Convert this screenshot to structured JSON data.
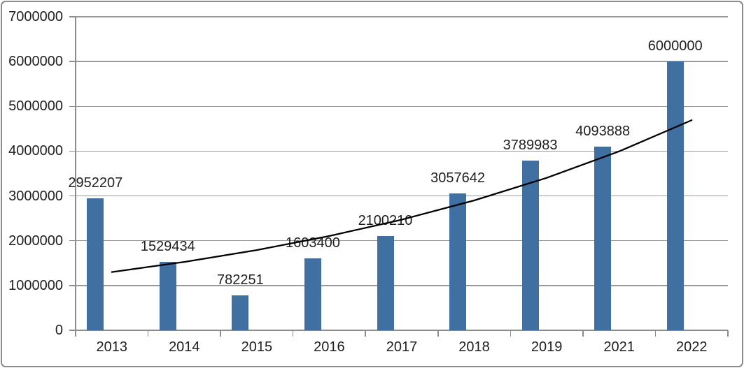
{
  "chart_data": {
    "type": "bar",
    "title": "",
    "xlabel": "",
    "ylabel": "",
    "categories": [
      "2013",
      "2014",
      "2015",
      "2016",
      "2017",
      "2018",
      "2019",
      "2021",
      "2022"
    ],
    "values": [
      2952207,
      1529434,
      782251,
      1603400,
      2100210,
      3057642,
      3789983,
      4093888,
      6000000
    ],
    "data_labels": [
      "2952207",
      "1529434",
      "782251",
      "1603400",
      "2100210",
      "3057642",
      "3789983",
      "4093888",
      "6000000"
    ],
    "ylim": [
      0,
      7000000
    ],
    "ytick_step": 1000000,
    "ytick_labels": [
      "0",
      "1000000",
      "2000000",
      "3000000",
      "4000000",
      "5000000",
      "6000000",
      "7000000"
    ],
    "grid": true,
    "legend": "none",
    "bar_color": "#4070a2",
    "gridline_color": "#999999",
    "axis_color": "#8c8c8c",
    "label_color": "#1f1f1f",
    "trendline": {
      "type": "exponential",
      "color": "#000000",
      "points": [
        1300000,
        1526000,
        1792000,
        2104000,
        2470000,
        2900000,
        3404000,
        3996000,
        4691000
      ]
    }
  }
}
